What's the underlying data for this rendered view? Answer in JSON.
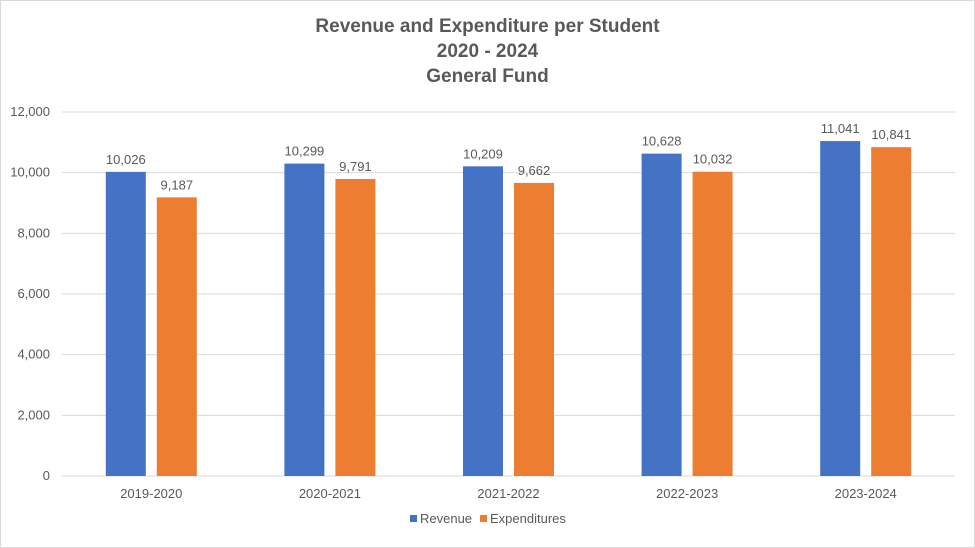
{
  "chart_data": {
    "type": "bar",
    "title_lines": [
      "Revenue and Expenditure per Student",
      "2020 - 2024",
      "General Fund"
    ],
    "categories": [
      "2019-2020",
      "2020-2021",
      "2021-2022",
      "2022-2023",
      "2023-2024"
    ],
    "series": [
      {
        "name": "Revenue",
        "color": "#4472c4",
        "values": [
          10026,
          10299,
          10209,
          10628,
          11041
        ],
        "labels": [
          "10,026",
          "10,299",
          "10,209",
          "10,628",
          "11,041"
        ]
      },
      {
        "name": "Expenditures",
        "color": "#ed7d31",
        "values": [
          9187,
          9791,
          9662,
          10032,
          10841
        ],
        "labels": [
          "9,187",
          "9,791",
          "9,662",
          "10,032",
          "10,841"
        ]
      }
    ],
    "ylim": [
      0,
      12000
    ],
    "y_ticks": [
      0,
      2000,
      4000,
      6000,
      8000,
      10000,
      12000
    ],
    "y_tick_labels": [
      "0",
      "2,000",
      "4,000",
      "6,000",
      "8,000",
      "10,000",
      "12,000"
    ],
    "grid": true,
    "grid_color": "#d9d9d9",
    "legend_position": "bottom"
  }
}
